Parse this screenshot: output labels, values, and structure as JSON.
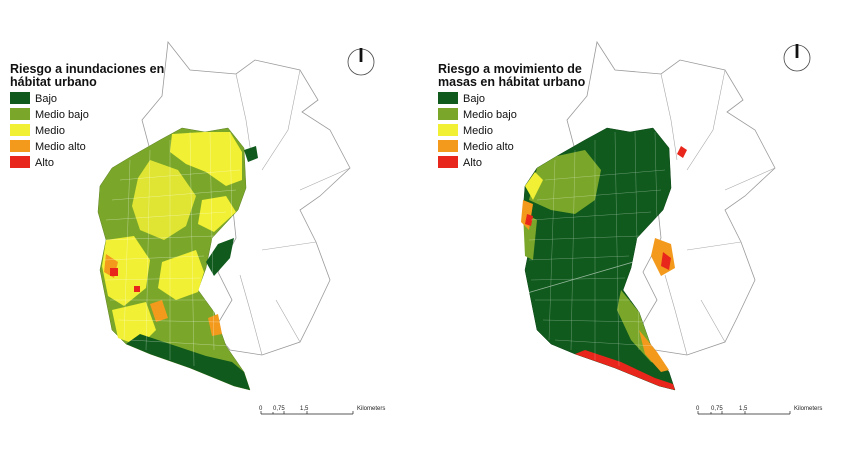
{
  "colors": {
    "bajo": "#0f5a1c",
    "medio_bajo": "#7aa72a",
    "medio": "#f1f034",
    "medio_alto": "#f39a1c",
    "alto": "#e8261b"
  },
  "left_map": {
    "title_line1": "Riesgo a inundaciones en",
    "title_line2": "hábitat urbano",
    "legend": [
      "Bajo",
      "Medio bajo",
      "Medio",
      "Medio alto",
      "Alto"
    ],
    "scale": {
      "ticks": [
        "0",
        "0,75",
        "1,5"
      ],
      "unit": "Kilometers"
    }
  },
  "right_map": {
    "title_line1": "Riesgo a movimiento de",
    "title_line2": "masas en hábitat urbano",
    "legend": [
      "Bajo",
      "Medio bajo",
      "Medio",
      "Medio alto",
      "Alto"
    ],
    "scale": {
      "ticks": [
        "0",
        "0,75",
        "1,5"
      ],
      "unit": "Kilometers"
    }
  }
}
